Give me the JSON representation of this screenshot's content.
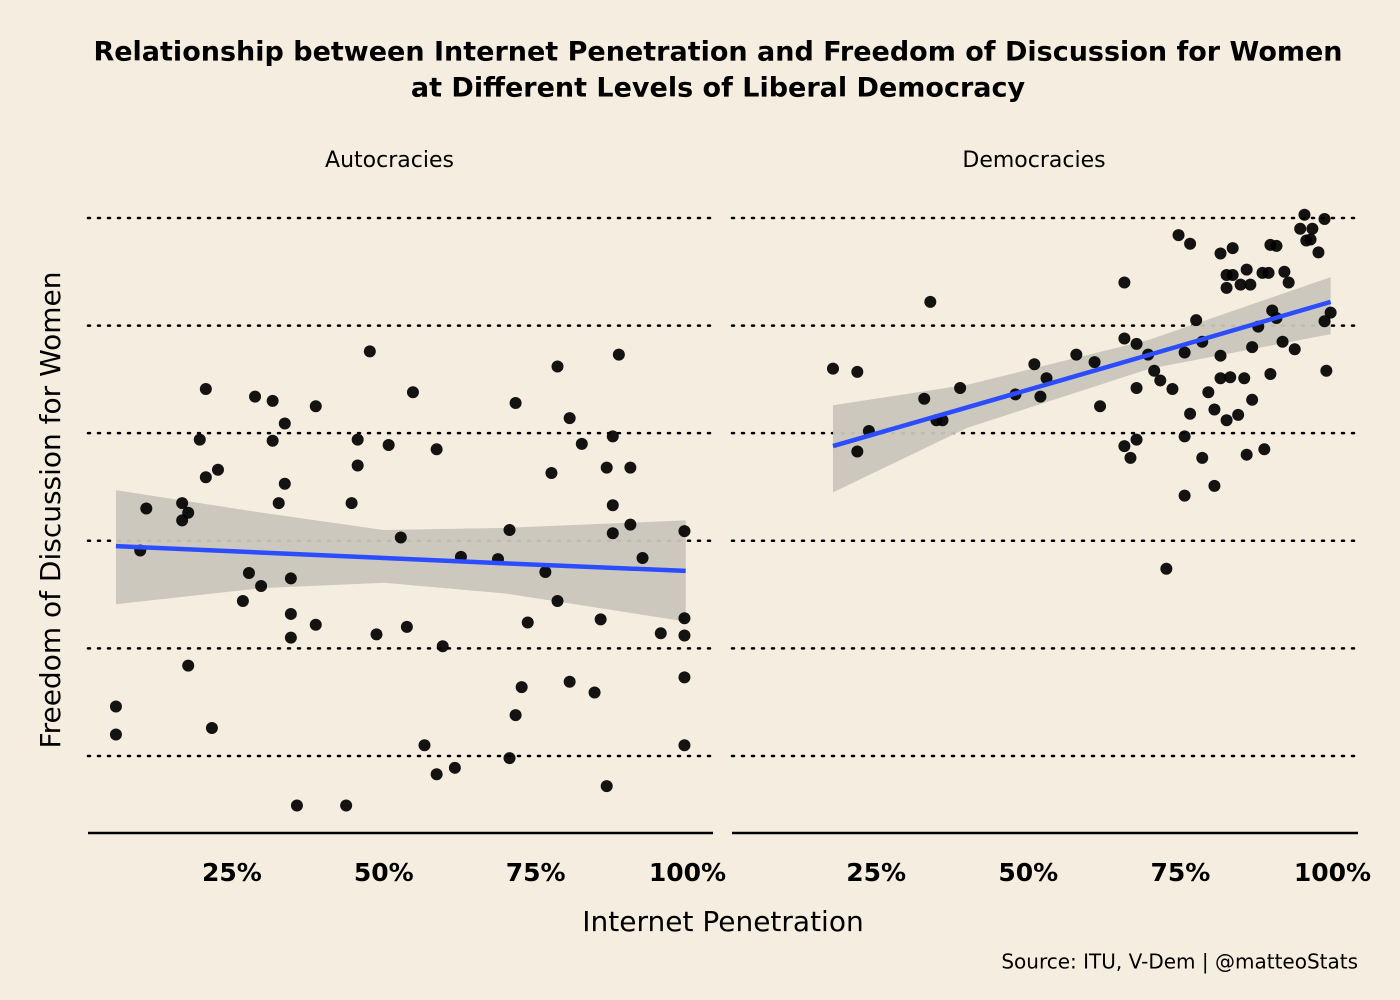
{
  "title": [
    "Relationship between Internet Penetration and Freedom of Discussion for Women",
    "at Different Levels of Liberal Democracy"
  ],
  "xlabel": "Internet Penetration",
  "ylabel": "Freedom of Discussion for Women",
  "source": "Source: ITU, V-Dem | @matteoStats",
  "chart_data": [
    {
      "type": "scatter",
      "title": "Autocracies",
      "color": "#000000",
      "xlim": [
        1.3,
        104.2
      ],
      "ylim": [
        -2.7,
        3.1
      ],
      "xticks": [
        {
          "value": 25,
          "label": "25%"
        },
        {
          "value": 50,
          "label": "50%"
        },
        {
          "value": 75,
          "label": "75%"
        },
        {
          "value": 100,
          "label": "100%"
        }
      ],
      "yticks": [
        -2,
        -1,
        0,
        1,
        2,
        3
      ],
      "grid": "dotted",
      "x": [
        5.9,
        5.9,
        10.9,
        9.9,
        16.8,
        16.8,
        17.8,
        17.8,
        19.7,
        20.7,
        20.7,
        22.7,
        21.7,
        26.8,
        27.8,
        28.8,
        29.8,
        31.7,
        31.7,
        32.7,
        33.7,
        33.7,
        34.7,
        34.7,
        34.7,
        35.7,
        38.8,
        38.8,
        43.8,
        44.7,
        45.7,
        45.7,
        47.7,
        48.8,
        50.8,
        52.8,
        53.8,
        54.8,
        56.7,
        58.7,
        58.7,
        59.7,
        61.7,
        62.7,
        68.8,
        70.7,
        70.7,
        71.7,
        71.7,
        72.7,
        73.7,
        76.6,
        77.6,
        78.6,
        78.6,
        80.6,
        80.6,
        82.6,
        84.7,
        85.7,
        86.7,
        86.7,
        87.7,
        87.7,
        87.7,
        88.7,
        90.6,
        90.6,
        92.6,
        95.6,
        99.5,
        99.5,
        99.5,
        99.5,
        99.5
      ],
      "y": [
        -1.54,
        -1.8,
        0.3,
        -0.09,
        0.35,
        0.19,
        0.26,
        -1.16,
        0.94,
        1.41,
        0.59,
        0.66,
        -1.74,
        -0.56,
        -0.3,
        1.34,
        -0.42,
        1.3,
        0.93,
        0.35,
        1.09,
        0.53,
        -0.35,
        -0.68,
        -0.9,
        -2.46,
        1.25,
        -0.78,
        -2.46,
        0.35,
        0.94,
        0.7,
        1.76,
        -0.87,
        0.89,
        0.03,
        -0.8,
        1.38,
        -1.9,
        -2.17,
        0.85,
        -0.98,
        -2.11,
        -0.15,
        -0.17,
        -2.02,
        0.1,
        -1.62,
        1.28,
        -1.36,
        -0.76,
        -0.29,
        0.63,
        -0.56,
        1.62,
        1.14,
        -1.31,
        0.9,
        -1.41,
        -0.73,
        -2.28,
        0.68,
        0.97,
        0.33,
        0.07,
        1.73,
        0.68,
        0.15,
        -0.16,
        -0.86,
        0.09,
        -0.72,
        -0.88,
        -1.27,
        -1.9
      ],
      "fit_color": "#2b4cff",
      "band_color": "#c9c5bb",
      "fit_x": [
        5.9,
        30,
        50,
        70,
        99.7
      ],
      "fit_y": [
        -0.05,
        -0.11,
        -0.16,
        -0.21,
        -0.28
      ],
      "fit_lower": [
        -0.59,
        -0.44,
        -0.39,
        -0.49,
        -0.75
      ],
      "fit_upper": [
        0.47,
        0.26,
        0.1,
        0.12,
        0.19
      ]
    },
    {
      "type": "scatter",
      "title": "Democracies",
      "color": "#000000",
      "xlim": [
        1.3,
        104.2
      ],
      "ylim": [
        -2.7,
        3.1
      ],
      "xticks": [
        {
          "value": 25,
          "label": "25%"
        },
        {
          "value": 50,
          "label": "50%"
        },
        {
          "value": 75,
          "label": "75%"
        },
        {
          "value": 100,
          "label": "100%"
        }
      ],
      "yticks": [
        -2,
        -1,
        0,
        1,
        2,
        3
      ],
      "grid": "dotted",
      "x": [
        17.9,
        21.9,
        21.9,
        23.8,
        32.9,
        34.9,
        35.9,
        33.9,
        38.8,
        47.9,
        51.0,
        52.0,
        53.0,
        57.9,
        60.9,
        61.8,
        65.8,
        65.8,
        65.8,
        66.8,
        67.8,
        67.8,
        67.8,
        69.7,
        70.7,
        71.7,
        72.7,
        73.7,
        74.7,
        75.7,
        75.7,
        75.7,
        76.6,
        76.6,
        77.6,
        78.6,
        78.6,
        79.6,
        80.6,
        80.6,
        81.6,
        81.6,
        81.6,
        82.6,
        82.6,
        82.6,
        83.2,
        83.6,
        83.6,
        84.5,
        84.9,
        85.5,
        85.9,
        85.9,
        86.5,
        86.8,
        86.8,
        87.8,
        88.5,
        88.8,
        89.5,
        89.8,
        89.8,
        90.1,
        90.8,
        90.8,
        91.8,
        92.1,
        92.8,
        93.8,
        94.7,
        95.4,
        95.7,
        96.4,
        96.7,
        97.7,
        98.7,
        98.7,
        99.0,
        99.7
      ],
      "y": [
        1.6,
        1.57,
        0.83,
        1.02,
        1.32,
        1.12,
        1.12,
        2.22,
        1.42,
        1.36,
        1.64,
        1.34,
        1.51,
        1.73,
        1.66,
        1.25,
        2.4,
        1.88,
        0.88,
        0.77,
        1.83,
        1.42,
        0.94,
        1.73,
        1.58,
        1.49,
        -0.26,
        1.41,
        2.84,
        1.75,
        0.97,
        0.42,
        2.76,
        1.18,
        2.05,
        1.85,
        0.77,
        1.38,
        0.51,
        1.22,
        2.67,
        1.72,
        1.51,
        2.47,
        2.35,
        1.12,
        1.52,
        2.72,
        2.47,
        1.17,
        2.38,
        1.51,
        2.52,
        0.8,
        2.38,
        1.8,
        1.31,
        1.99,
        2.49,
        0.85,
        2.49,
        2.75,
        1.55,
        2.14,
        2.74,
        2.07,
        1.85,
        2.5,
        2.4,
        1.78,
        2.9,
        3.03,
        2.79,
        2.8,
        2.9,
        2.68,
        2.99,
        2.04,
        1.58,
        2.12
      ],
      "fit_color": "#2b4cff",
      "band_color": "#c9c5bb",
      "fit_x": [
        17.9,
        40,
        70,
        99.7
      ],
      "fit_y": [
        0.88,
        1.24,
        1.73,
        2.22
      ],
      "fit_lower": [
        0.45,
        1.05,
        1.6,
        1.92
      ],
      "fit_upper": [
        1.26,
        1.45,
        1.87,
        2.45
      ]
    }
  ]
}
